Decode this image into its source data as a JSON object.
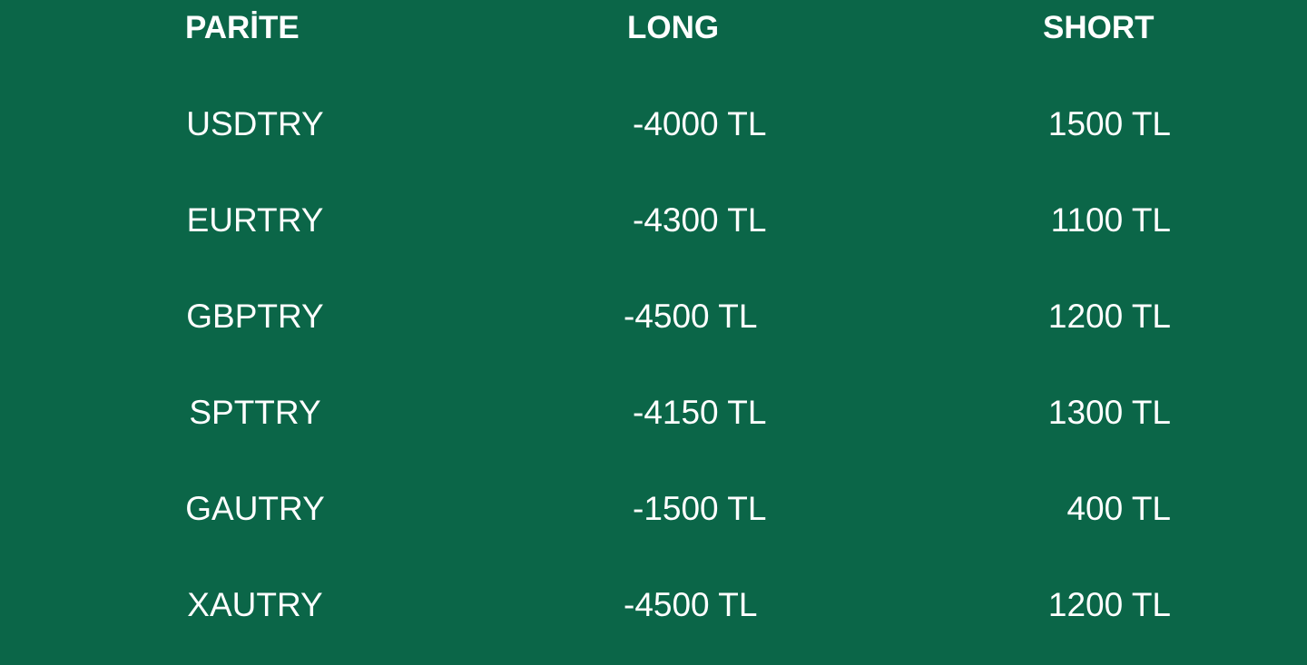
{
  "headers": {
    "pair": "PARİTE",
    "long": "LONG",
    "short": "SHORT"
  },
  "rows": [
    {
      "pair": "USDTRY",
      "long": "-4000 TL",
      "short": "1500 TL"
    },
    {
      "pair": "EURTRY",
      "long": "-4300 TL",
      "short": "1100 TL"
    },
    {
      "pair": "GBPTRY",
      "long": "-4500 TL",
      "short": "1200 TL"
    },
    {
      "pair": "SPTTRY",
      "long": "-4150 TL",
      "short": "1300 TL"
    },
    {
      "pair": "GAUTRY",
      "long": "-1500 TL",
      "short": "400 TL"
    },
    {
      "pair": "XAUTRY",
      "long": "-4500 TL",
      "short": "1200 TL"
    }
  ],
  "colors": {
    "background": "#0b6648",
    "text": "#ffffff"
  }
}
